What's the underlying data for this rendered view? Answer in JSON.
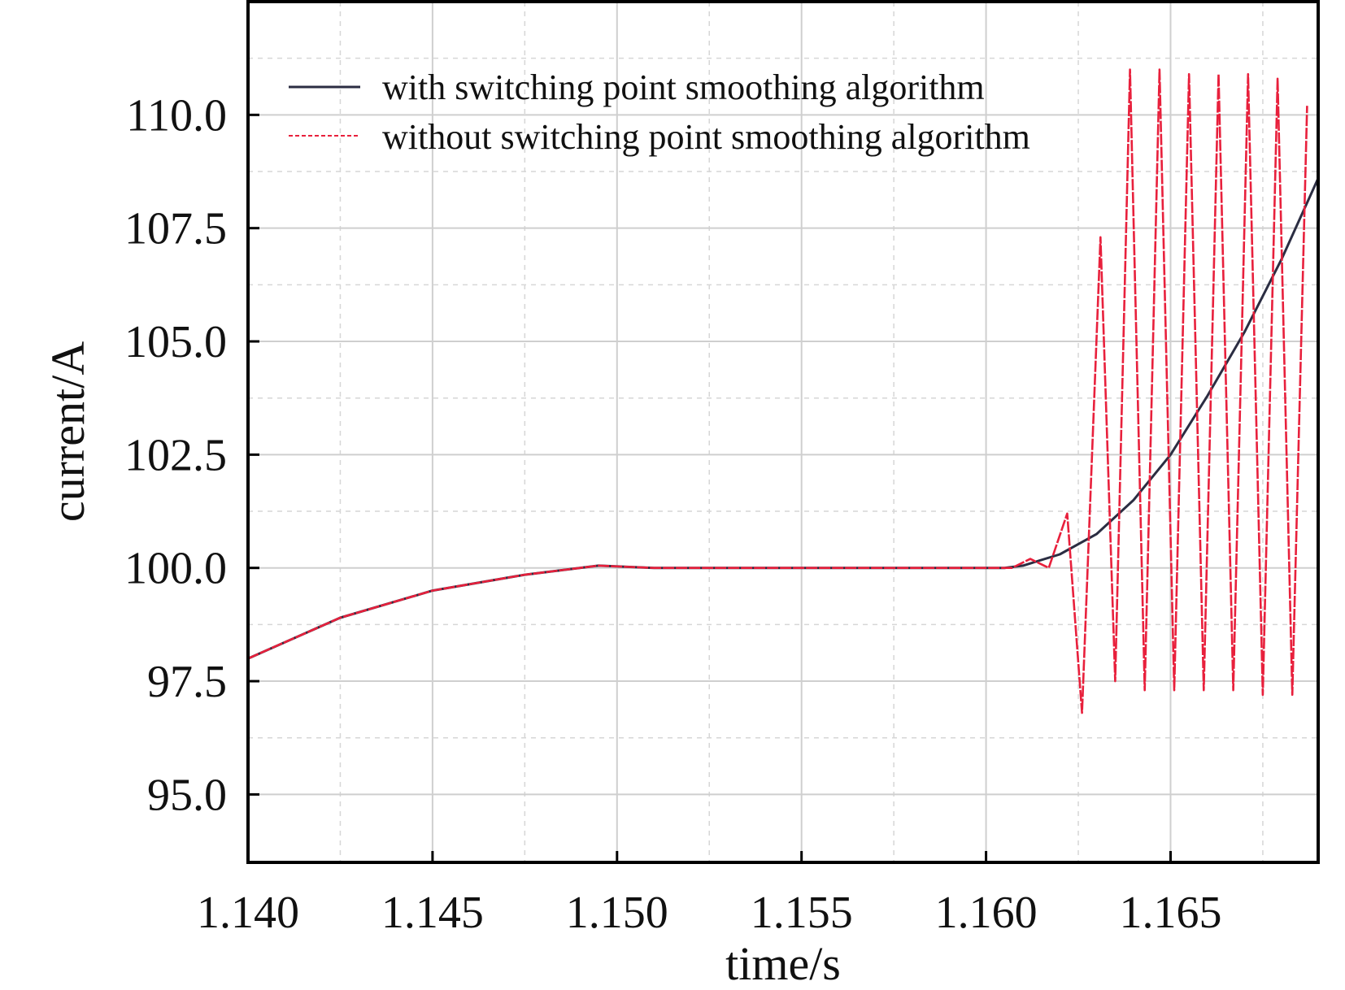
{
  "colors": {
    "series_with": "#2b2d42",
    "series_without": "#e8203c",
    "grid": "#cfcfcf",
    "frame": "#000000",
    "background": "#ffffff"
  },
  "chart_data": {
    "type": "line",
    "title": "",
    "xlabel": "time/s",
    "ylabel": "current/A",
    "xlim": [
      1.14,
      1.169
    ],
    "ylim": [
      93.5,
      112.5
    ],
    "xticks": [
      1.14,
      1.145,
      1.15,
      1.155,
      1.16,
      1.165
    ],
    "xtick_labels": [
      "1.140",
      "1.145",
      "1.150",
      "1.155",
      "1.160",
      "1.165"
    ],
    "yticks": [
      95.0,
      97.5,
      100.0,
      102.5,
      105.0,
      107.5,
      110.0
    ],
    "ytick_labels": [
      "95.0",
      "97.5",
      "100.0",
      "102.5",
      "105.0",
      "107.5",
      "110.0"
    ],
    "grid": true,
    "legend_position": "top-left",
    "series": [
      {
        "name": "with switching point smoothing algorithm",
        "style": "solid",
        "x": [
          1.14,
          1.1425,
          1.145,
          1.1475,
          1.1495,
          1.151,
          1.16,
          1.1605,
          1.161,
          1.162,
          1.163,
          1.164,
          1.165,
          1.166,
          1.167,
          1.168,
          1.169
        ],
        "y": [
          98.0,
          98.9,
          99.5,
          99.85,
          100.05,
          100.0,
          100.0,
          100.0,
          100.05,
          100.3,
          100.75,
          101.5,
          102.5,
          103.8,
          105.2,
          106.8,
          108.6
        ]
      },
      {
        "name": "without switching point smoothing algorithm",
        "style": "dashed",
        "x": [
          1.14,
          1.1425,
          1.145,
          1.1475,
          1.1495,
          1.151,
          1.1607,
          1.1612,
          1.1617,
          1.1622,
          1.1626,
          1.1631,
          1.1635,
          1.1639,
          1.1643,
          1.1647,
          1.1651,
          1.1655,
          1.1659,
          1.1663,
          1.1667,
          1.1671,
          1.1675,
          1.1679,
          1.1683,
          1.1687
        ],
        "y": [
          98.0,
          98.9,
          99.5,
          99.85,
          100.05,
          100.0,
          100.0,
          100.2,
          100.0,
          101.2,
          96.8,
          107.3,
          97.5,
          111.0,
          97.3,
          111.0,
          97.3,
          110.9,
          97.3,
          110.9,
          97.3,
          110.9,
          97.2,
          110.8,
          97.2,
          110.2
        ]
      }
    ]
  }
}
